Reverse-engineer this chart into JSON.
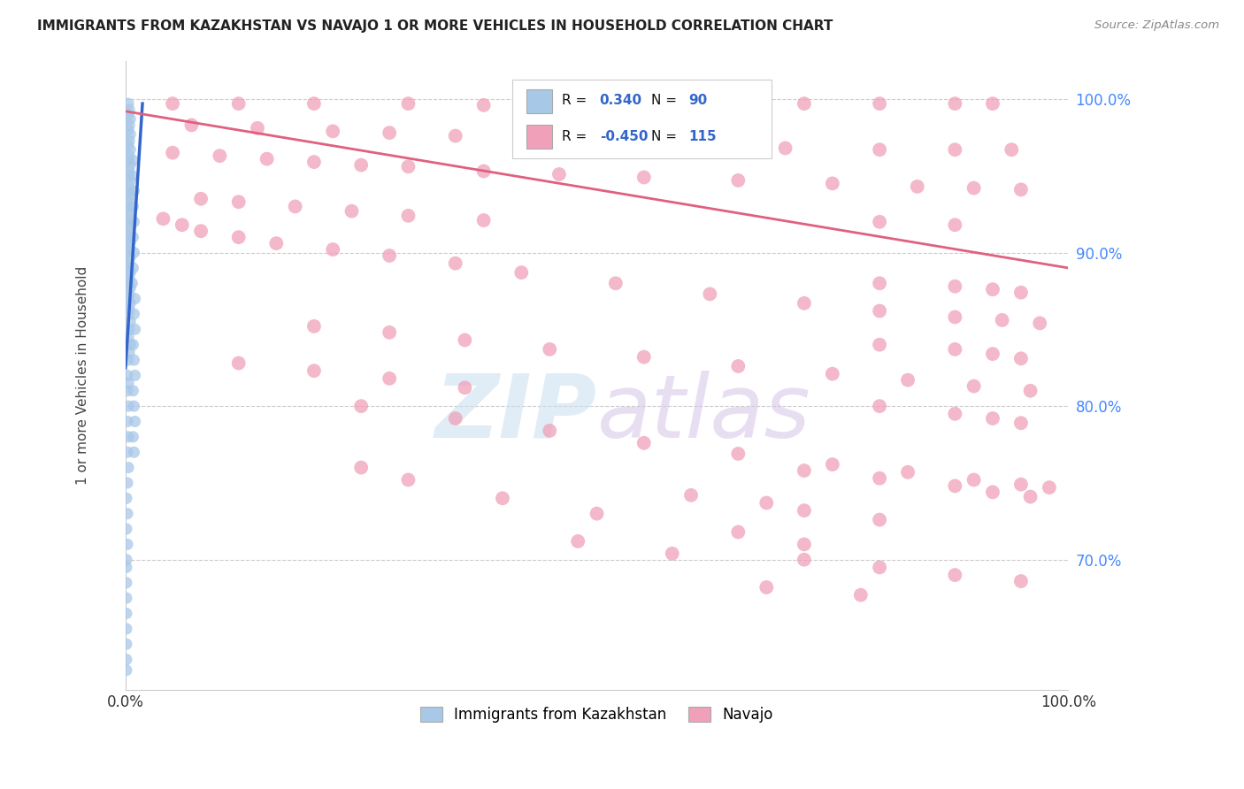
{
  "title": "IMMIGRANTS FROM KAZAKHSTAN VS NAVAJO 1 OR MORE VEHICLES IN HOUSEHOLD CORRELATION CHART",
  "source": "Source: ZipAtlas.com",
  "ylabel": "1 or more Vehicles in Household",
  "ytick_labels": [
    "70.0%",
    "80.0%",
    "90.0%",
    "100.0%"
  ],
  "ytick_values": [
    0.7,
    0.8,
    0.9,
    1.0
  ],
  "xlim": [
    0.0,
    1.0
  ],
  "ylim": [
    0.615,
    1.025
  ],
  "blue_color": "#a8c8e8",
  "pink_color": "#f0a0b8",
  "blue_line_color": "#3366cc",
  "pink_line_color": "#e06080",
  "blue_scatter": [
    [
      0.003,
      0.997
    ],
    [
      0.004,
      0.993
    ],
    [
      0.003,
      0.99
    ],
    [
      0.005,
      0.987
    ],
    [
      0.004,
      0.983
    ],
    [
      0.003,
      0.98
    ],
    [
      0.005,
      0.977
    ],
    [
      0.004,
      0.973
    ],
    [
      0.003,
      0.97
    ],
    [
      0.005,
      0.967
    ],
    [
      0.004,
      0.963
    ],
    [
      0.003,
      0.96
    ],
    [
      0.005,
      0.957
    ],
    [
      0.004,
      0.953
    ],
    [
      0.003,
      0.95
    ],
    [
      0.005,
      0.947
    ],
    [
      0.004,
      0.943
    ],
    [
      0.003,
      0.94
    ],
    [
      0.005,
      0.937
    ],
    [
      0.004,
      0.933
    ],
    [
      0.003,
      0.93
    ],
    [
      0.005,
      0.927
    ],
    [
      0.004,
      0.923
    ],
    [
      0.003,
      0.92
    ],
    [
      0.005,
      0.917
    ],
    [
      0.004,
      0.913
    ],
    [
      0.003,
      0.91
    ],
    [
      0.005,
      0.907
    ],
    [
      0.004,
      0.903
    ],
    [
      0.003,
      0.9
    ],
    [
      0.005,
      0.897
    ],
    [
      0.004,
      0.893
    ],
    [
      0.003,
      0.89
    ],
    [
      0.005,
      0.887
    ],
    [
      0.004,
      0.883
    ],
    [
      0.003,
      0.88
    ],
    [
      0.005,
      0.877
    ],
    [
      0.004,
      0.873
    ],
    [
      0.003,
      0.87
    ],
    [
      0.005,
      0.867
    ],
    [
      0.004,
      0.863
    ],
    [
      0.003,
      0.86
    ],
    [
      0.005,
      0.855
    ],
    [
      0.004,
      0.85
    ],
    [
      0.003,
      0.845
    ],
    [
      0.005,
      0.84
    ],
    [
      0.004,
      0.835
    ],
    [
      0.003,
      0.83
    ],
    [
      0.002,
      0.82
    ],
    [
      0.003,
      0.815
    ],
    [
      0.002,
      0.81
    ],
    [
      0.003,
      0.8
    ],
    [
      0.002,
      0.79
    ],
    [
      0.003,
      0.78
    ],
    [
      0.002,
      0.77
    ],
    [
      0.003,
      0.76
    ],
    [
      0.002,
      0.75
    ],
    [
      0.001,
      0.74
    ],
    [
      0.002,
      0.73
    ],
    [
      0.001,
      0.72
    ],
    [
      0.002,
      0.71
    ],
    [
      0.001,
      0.7
    ],
    [
      0.001,
      0.695
    ],
    [
      0.001,
      0.685
    ],
    [
      0.001,
      0.675
    ],
    [
      0.001,
      0.665
    ],
    [
      0.001,
      0.655
    ],
    [
      0.001,
      0.645
    ],
    [
      0.001,
      0.635
    ],
    [
      0.001,
      0.628
    ],
    [
      0.008,
      0.96
    ],
    [
      0.007,
      0.95
    ],
    [
      0.009,
      0.94
    ],
    [
      0.008,
      0.93
    ],
    [
      0.009,
      0.92
    ],
    [
      0.008,
      0.91
    ],
    [
      0.009,
      0.9
    ],
    [
      0.008,
      0.89
    ],
    [
      0.007,
      0.88
    ],
    [
      0.01,
      0.87
    ],
    [
      0.009,
      0.86
    ],
    [
      0.01,
      0.85
    ],
    [
      0.008,
      0.84
    ],
    [
      0.009,
      0.83
    ],
    [
      0.01,
      0.82
    ],
    [
      0.008,
      0.81
    ],
    [
      0.009,
      0.8
    ],
    [
      0.01,
      0.79
    ],
    [
      0.008,
      0.78
    ],
    [
      0.009,
      0.77
    ]
  ],
  "pink_scatter": [
    [
      0.05,
      0.997
    ],
    [
      0.12,
      0.997
    ],
    [
      0.2,
      0.997
    ],
    [
      0.3,
      0.997
    ],
    [
      0.38,
      0.996
    ],
    [
      0.48,
      0.997
    ],
    [
      0.58,
      0.997
    ],
    [
      0.65,
      0.997
    ],
    [
      0.72,
      0.997
    ],
    [
      0.8,
      0.997
    ],
    [
      0.88,
      0.997
    ],
    [
      0.92,
      0.997
    ],
    [
      0.07,
      0.983
    ],
    [
      0.14,
      0.981
    ],
    [
      0.22,
      0.979
    ],
    [
      0.28,
      0.978
    ],
    [
      0.35,
      0.976
    ],
    [
      0.42,
      0.974
    ],
    [
      0.52,
      0.972
    ],
    [
      0.62,
      0.97
    ],
    [
      0.7,
      0.968
    ],
    [
      0.8,
      0.967
    ],
    [
      0.88,
      0.967
    ],
    [
      0.94,
      0.967
    ],
    [
      0.05,
      0.965
    ],
    [
      0.1,
      0.963
    ],
    [
      0.15,
      0.961
    ],
    [
      0.2,
      0.959
    ],
    [
      0.25,
      0.957
    ],
    [
      0.3,
      0.956
    ],
    [
      0.38,
      0.953
    ],
    [
      0.46,
      0.951
    ],
    [
      0.55,
      0.949
    ],
    [
      0.65,
      0.947
    ],
    [
      0.75,
      0.945
    ],
    [
      0.84,
      0.943
    ],
    [
      0.9,
      0.942
    ],
    [
      0.95,
      0.941
    ],
    [
      0.08,
      0.935
    ],
    [
      0.12,
      0.933
    ],
    [
      0.18,
      0.93
    ],
    [
      0.24,
      0.927
    ],
    [
      0.3,
      0.924
    ],
    [
      0.38,
      0.921
    ],
    [
      0.04,
      0.922
    ],
    [
      0.06,
      0.918
    ],
    [
      0.08,
      0.914
    ],
    [
      0.12,
      0.91
    ],
    [
      0.16,
      0.906
    ],
    [
      0.22,
      0.902
    ],
    [
      0.28,
      0.898
    ],
    [
      0.35,
      0.893
    ],
    [
      0.42,
      0.887
    ],
    [
      0.52,
      0.88
    ],
    [
      0.62,
      0.873
    ],
    [
      0.72,
      0.867
    ],
    [
      0.8,
      0.862
    ],
    [
      0.88,
      0.858
    ],
    [
      0.93,
      0.856
    ],
    [
      0.97,
      0.854
    ],
    [
      0.2,
      0.852
    ],
    [
      0.28,
      0.848
    ],
    [
      0.36,
      0.843
    ],
    [
      0.45,
      0.837
    ],
    [
      0.55,
      0.832
    ],
    [
      0.65,
      0.826
    ],
    [
      0.75,
      0.821
    ],
    [
      0.83,
      0.817
    ],
    [
      0.9,
      0.813
    ],
    [
      0.96,
      0.81
    ],
    [
      0.12,
      0.828
    ],
    [
      0.2,
      0.823
    ],
    [
      0.28,
      0.818
    ],
    [
      0.36,
      0.812
    ],
    [
      0.25,
      0.8
    ],
    [
      0.35,
      0.792
    ],
    [
      0.45,
      0.784
    ],
    [
      0.55,
      0.776
    ],
    [
      0.65,
      0.769
    ],
    [
      0.75,
      0.762
    ],
    [
      0.83,
      0.757
    ],
    [
      0.9,
      0.752
    ],
    [
      0.95,
      0.749
    ],
    [
      0.98,
      0.747
    ],
    [
      0.72,
      0.758
    ],
    [
      0.8,
      0.753
    ],
    [
      0.88,
      0.748
    ],
    [
      0.92,
      0.744
    ],
    [
      0.96,
      0.741
    ],
    [
      0.72,
      0.732
    ],
    [
      0.8,
      0.726
    ],
    [
      0.4,
      0.74
    ],
    [
      0.5,
      0.73
    ],
    [
      0.25,
      0.76
    ],
    [
      0.3,
      0.752
    ],
    [
      0.65,
      0.718
    ],
    [
      0.72,
      0.71
    ],
    [
      0.48,
      0.712
    ],
    [
      0.58,
      0.704
    ],
    [
      0.72,
      0.7
    ],
    [
      0.8,
      0.695
    ],
    [
      0.88,
      0.69
    ],
    [
      0.95,
      0.686
    ],
    [
      0.68,
      0.682
    ],
    [
      0.78,
      0.677
    ],
    [
      0.6,
      0.742
    ],
    [
      0.68,
      0.737
    ],
    [
      0.8,
      0.8
    ],
    [
      0.88,
      0.795
    ],
    [
      0.92,
      0.792
    ],
    [
      0.95,
      0.789
    ],
    [
      0.8,
      0.84
    ],
    [
      0.88,
      0.837
    ],
    [
      0.92,
      0.834
    ],
    [
      0.95,
      0.831
    ],
    [
      0.8,
      0.88
    ],
    [
      0.88,
      0.878
    ],
    [
      0.92,
      0.876
    ],
    [
      0.95,
      0.874
    ],
    [
      0.8,
      0.92
    ],
    [
      0.88,
      0.918
    ]
  ],
  "blue_trend_x": [
    0.0,
    0.018
  ],
  "blue_trend_y": [
    0.825,
    0.997
  ],
  "pink_trend_x": [
    0.0,
    1.0
  ],
  "pink_trend_y": [
    0.992,
    0.89
  ],
  "watermark_zip": "ZIP",
  "watermark_atlas": "atlas",
  "background_color": "#ffffff",
  "grid_color": "#cccccc",
  "title_color": "#222222",
  "source_color": "#888888",
  "ytick_color": "#4488ff",
  "xtick_color": "#333333"
}
